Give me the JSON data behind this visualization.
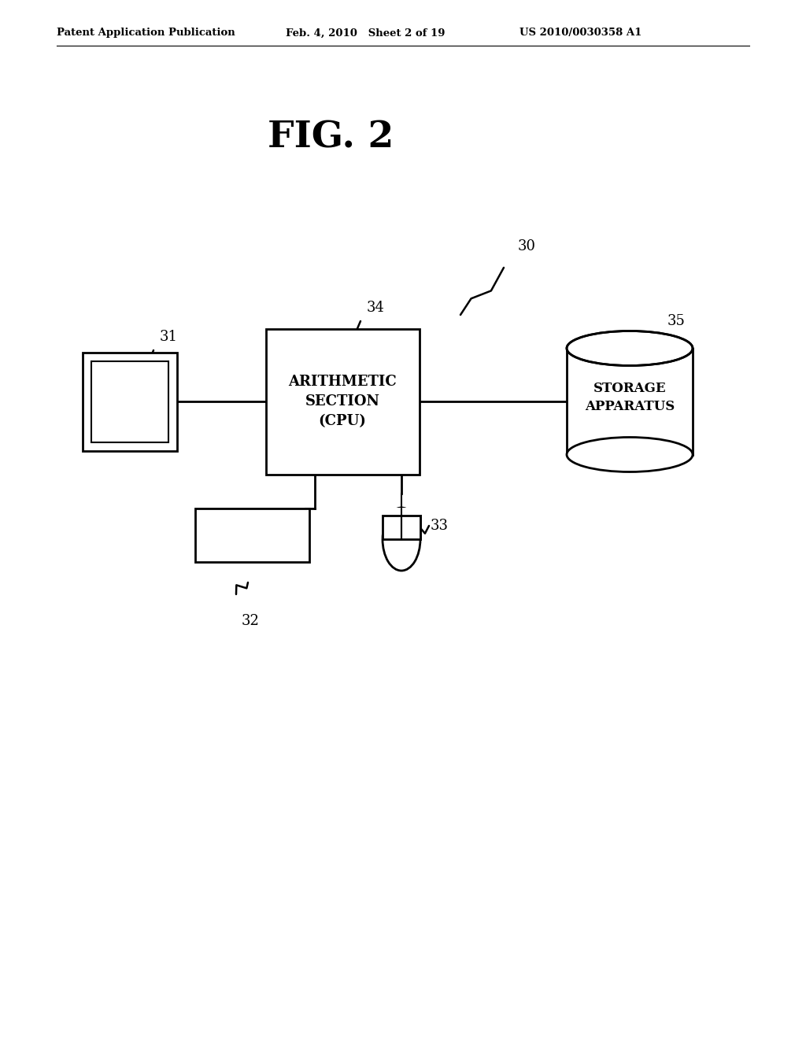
{
  "background_color": "#ffffff",
  "header_left": "Patent Application Publication",
  "header_mid": "Feb. 4, 2010   Sheet 2 of 19",
  "header_right": "US 2010/0030358 A1",
  "fig_title": "FIG. 2",
  "label_30": "30",
  "label_31": "31",
  "label_32": "32",
  "label_33": "33",
  "label_34": "34",
  "label_35": "35",
  "cpu_text": "ARITHMETIC\nSECTION\n(CPU)",
  "storage_text": "STORAGE\nAPPARATUS",
  "line_color": "#000000",
  "box_color": "#ffffff"
}
